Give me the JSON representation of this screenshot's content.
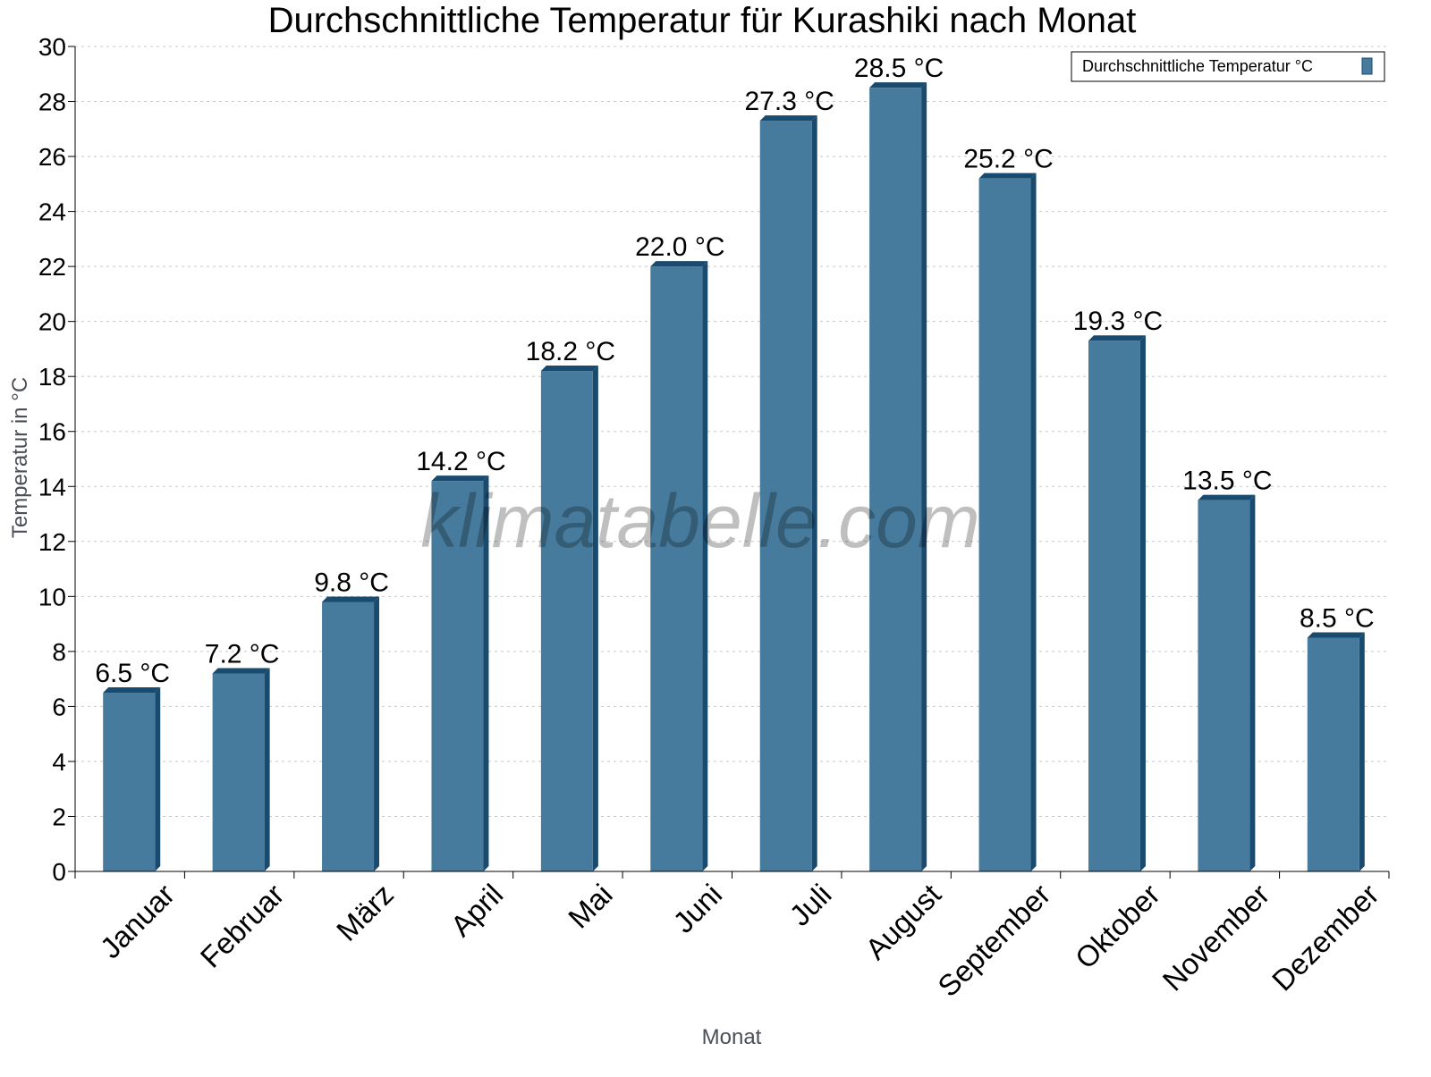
{
  "chart_data": {
    "type": "bar",
    "title": "Durchschnittliche Temperatur für Kurashiki nach Monat",
    "xlabel": "Monat",
    "ylabel": "Temperatur in °C",
    "categories": [
      "Januar",
      "Februar",
      "März",
      "April",
      "Mai",
      "Juni",
      "Juli",
      "August",
      "September",
      "Oktober",
      "November",
      "Dezember"
    ],
    "series": [
      {
        "name": "Durchschnittliche Temperatur °C",
        "values": [
          6.5,
          7.2,
          9.8,
          14.2,
          18.2,
          22.0,
          27.3,
          28.5,
          25.2,
          19.3,
          13.5,
          8.5
        ],
        "color": "#467b9d",
        "edge_color": "#1a4a6e"
      }
    ],
    "data_labels": [
      "6.5 °C",
      "7.2 °C",
      "9.8 °C",
      "14.2 °C",
      "18.2 °C",
      "22.0 °C",
      "27.3 °C",
      "28.5 °C",
      "25.2 °C",
      "19.3 °C",
      "13.5 °C",
      "8.5 °C"
    ],
    "ylim": [
      0,
      30
    ],
    "yticks": [
      0,
      2,
      4,
      6,
      8,
      10,
      12,
      14,
      16,
      18,
      20,
      22,
      24,
      26,
      28,
      30
    ],
    "grid": true,
    "legend_position": "top-right",
    "watermark": "klimatabelle.com"
  }
}
